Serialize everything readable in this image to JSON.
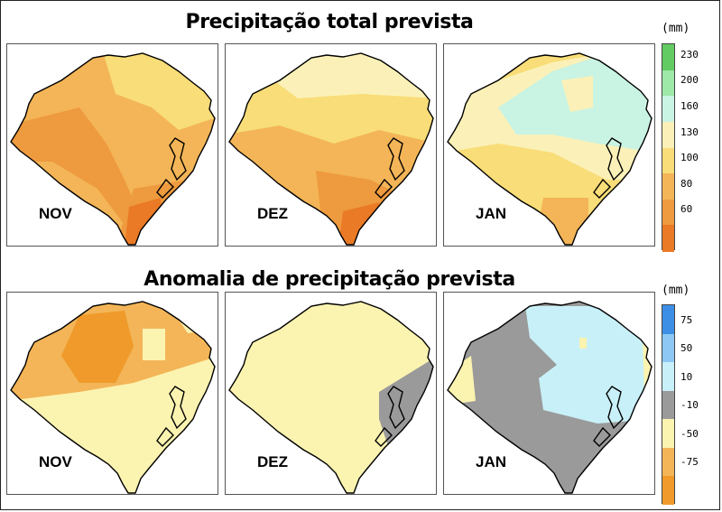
{
  "top_section": {
    "title": "Precipitação total prevista",
    "unit": "(mm)",
    "months": [
      "NOV",
      "DEZ",
      "JAN"
    ],
    "legend": [
      {
        "label": "230",
        "color": "#62cc62"
      },
      {
        "label": "200",
        "color": "#9ee8a8"
      },
      {
        "label": "160",
        "color": "#c9f3e3"
      },
      {
        "label": "130",
        "color": "#fbf1b8"
      },
      {
        "label": "100",
        "color": "#f8dd78"
      },
      {
        "label": "80",
        "color": "#f3b557"
      },
      {
        "label": "60",
        "color": "#ee9a3e"
      },
      {
        "label": "",
        "color": "#ea7a25"
      }
    ]
  },
  "bottom_section": {
    "title": "Anomalia de precipitação prevista",
    "unit": "(mm)",
    "months": [
      "NOV",
      "DEZ",
      "JAN"
    ],
    "legend": [
      {
        "label": "75",
        "color": "#3d8fe6"
      },
      {
        "label": "50",
        "color": "#8cc8f3"
      },
      {
        "label": "10",
        "color": "#c8f0f8"
      },
      {
        "label": "-10",
        "color": "#9a9a9a"
      },
      {
        "label": "-50",
        "color": "#fbf3b0"
      },
      {
        "label": "-75",
        "color": "#f3b557"
      },
      {
        "label": "",
        "color": "#ef9a2a"
      }
    ]
  }
}
